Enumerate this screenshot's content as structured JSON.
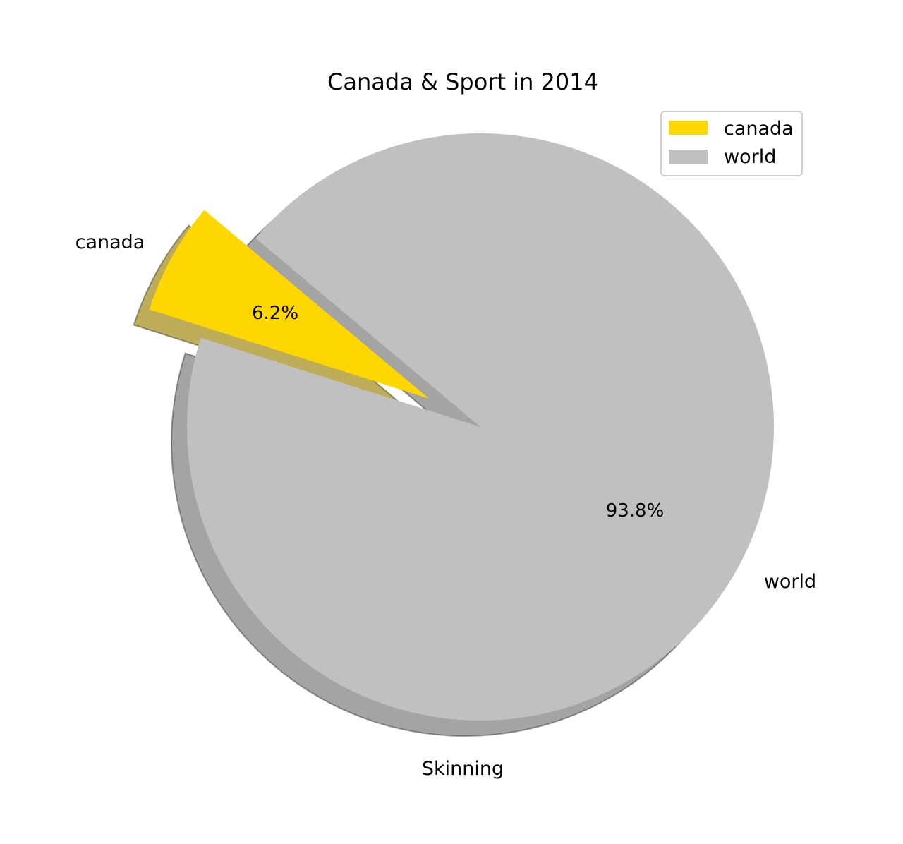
{
  "chart_data": {
    "type": "pie",
    "title": "Canada & Sport in 2014",
    "xlabel": "Skinning",
    "labels": [
      "canada",
      "world"
    ],
    "values": [
      6.2,
      93.8
    ],
    "percent_labels": [
      "6.2%",
      "93.8%"
    ],
    "colors": [
      "#ffd700",
      "#c0c0c0"
    ],
    "explode": [
      0.2,
      0
    ],
    "shadow": true,
    "start_angle_deg": 140,
    "legend": {
      "position": "top-right",
      "entries": [
        "canada",
        "world"
      ]
    }
  }
}
